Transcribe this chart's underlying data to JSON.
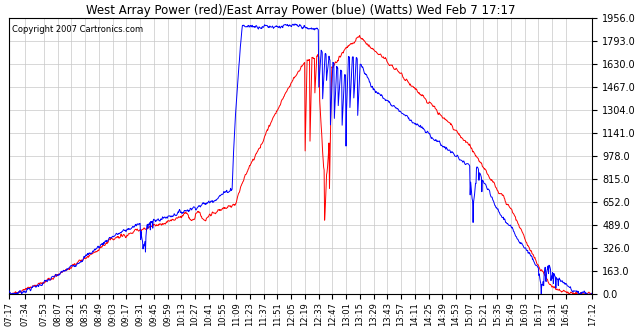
{
  "title": "West Array Power (red)/East Array Power (blue) (Watts) Wed Feb 7 17:17",
  "copyright": "Copyright 2007 Cartronics.com",
  "y_ticks": [
    0.0,
    163.0,
    326.0,
    489.0,
    652.0,
    815.0,
    978.0,
    1141.0,
    1304.0,
    1467.0,
    1630.0,
    1793.0,
    1956.0
  ],
  "ylim": [
    0,
    1956.0
  ],
  "bg_color": "#ffffff",
  "grid_color": "#c8c8c8",
  "blue_color": "#0000ff",
  "red_color": "#ff0000",
  "x_labels": [
    "07:17",
    "07:34",
    "07:53",
    "08:07",
    "08:21",
    "08:35",
    "08:49",
    "09:03",
    "09:17",
    "09:31",
    "09:45",
    "09:59",
    "10:13",
    "10:27",
    "10:41",
    "10:55",
    "11:09",
    "11:23",
    "11:37",
    "11:51",
    "12:05",
    "12:19",
    "12:33",
    "12:47",
    "13:01",
    "13:15",
    "13:29",
    "13:43",
    "13:57",
    "14:11",
    "14:25",
    "14:39",
    "14:53",
    "15:07",
    "15:21",
    "15:35",
    "15:49",
    "16:03",
    "16:17",
    "16:31",
    "16:45",
    "17:12"
  ]
}
